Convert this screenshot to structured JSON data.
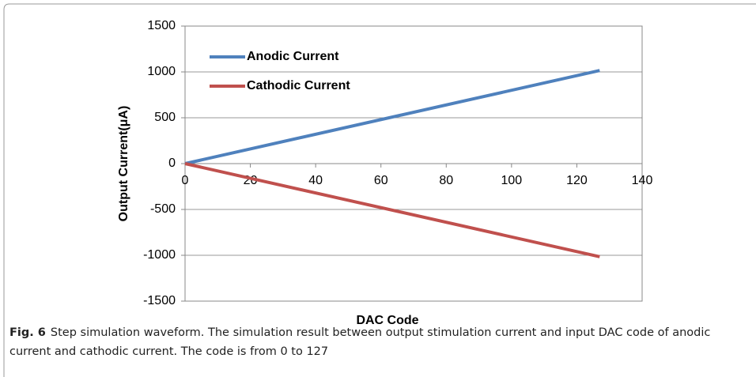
{
  "chart_data": {
    "type": "line",
    "x": [
      0,
      127
    ],
    "series": [
      {
        "name": "Anodic Current",
        "color": "#4f81bd",
        "values": [
          0,
          1016
        ]
      },
      {
        "name": "Cathodic Current",
        "color": "#c0504d",
        "values": [
          0,
          -1016
        ]
      }
    ],
    "xlabel": "DAC Code",
    "ylabel": "Output Current(μA)",
    "xlim": [
      0,
      140
    ],
    "xticks": [
      0,
      20,
      40,
      60,
      80,
      100,
      120,
      140
    ],
    "ylim": [
      -1500,
      1500
    ],
    "yticks": [
      -1500,
      -1000,
      -500,
      0,
      500,
      1000,
      1500
    ],
    "grid": true,
    "legend": "upper left"
  },
  "caption": {
    "label": "Fig. 6",
    "text": "Step simulation waveform. The simulation result between output stimulation current and input DAC code of anodic current and cathodic current. The code is from 0 to 127"
  }
}
